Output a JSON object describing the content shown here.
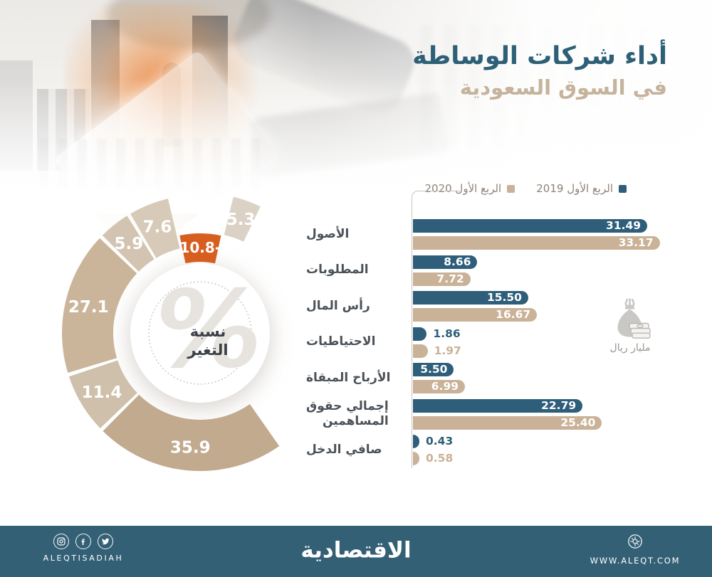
{
  "header": {
    "title": "أداء شركات الوساطة",
    "subtitle": "في السوق السعودية"
  },
  "legend": {
    "items": [
      {
        "label": "الربع الأول 2019",
        "color": "#2e5e7a"
      },
      {
        "label": "الربع الأول 2020",
        "color": "#c9b297"
      }
    ]
  },
  "unit_badge": {
    "icon": "money-bag-icon",
    "label": "مليار ريال"
  },
  "chart_data": [
    {
      "type": "bar",
      "orientation": "horizontal",
      "title": "أداء شركات الوساطة في السوق السعودية",
      "unit": "مليار ريال",
      "xlim": [
        0,
        35
      ],
      "grid": false,
      "legend_position": "top-right",
      "categories": [
        "الأصول",
        "المطلوبات",
        "رأس المال",
        "الاحتياطيات",
        "الأرباح المبقاة",
        "إجمالي حقوق\nالمساهمين",
        "صافي الدخل"
      ],
      "series": [
        {
          "name": "الربع الأول 2019",
          "color": "#2e5e7a",
          "values": [
            31.49,
            8.66,
            15.5,
            1.86,
            5.5,
            22.79,
            0.43
          ]
        },
        {
          "name": "الربع الأول 2020",
          "color": "#c9b297",
          "values": [
            33.17,
            7.72,
            16.67,
            1.97,
            6.99,
            25.4,
            0.58
          ]
        }
      ]
    },
    {
      "type": "donut",
      "title": "نسبة التغير",
      "center_symbol": "%",
      "center_label_lines": [
        "نسبة",
        "التغير"
      ],
      "segments": [
        {
          "value": 5.3,
          "color": "#dbd2c5",
          "exploded": true
        },
        {
          "value": -10.8,
          "color": "#d85e20",
          "inset": true
        },
        {
          "value": 7.6,
          "color": "#d7cab8"
        },
        {
          "value": 5.9,
          "color": "#d2c4b0"
        },
        {
          "value": 27.1,
          "color": "#cab59b"
        },
        {
          "value": 11.4,
          "color": "#cec0aa"
        },
        {
          "value": 35.9,
          "color": "#c1aa8e"
        }
      ]
    }
  ],
  "footer": {
    "brand_logo": "الاقتصادية",
    "social_handle": "ALEQTISADIAH",
    "website": "WWW.ALEQT.COM",
    "social_icons": [
      "instagram",
      "facebook",
      "twitter"
    ],
    "background": "#346076"
  }
}
